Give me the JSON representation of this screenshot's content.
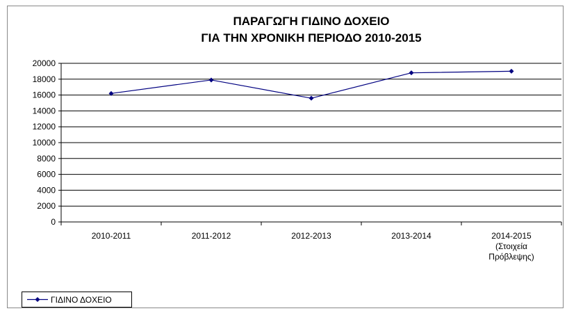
{
  "chart_data": {
    "type": "line",
    "title": [
      "ΠΑΡΑΓΩΓΗ ΓΙΔΙΝΟ ΔΟΧΕΙΟ",
      "ΓΙΑ ΤΗΝ ΧΡΟΝΙΚΗ ΠΕΡΙΟΔΟ 2010-2015"
    ],
    "categories": [
      "2010-2011",
      "2011-2012",
      "2012-2013",
      "2013-2014",
      "2014-2015\n(Στοιχεία\nΠρόβλεψης)"
    ],
    "series": [
      {
        "name": "ΓΙΔΙΝΟ ΔΟΧΕΙΟ",
        "color": "#000080",
        "values": [
          16200,
          17900,
          15600,
          18800,
          19000
        ]
      }
    ],
    "ylim": [
      0,
      20000
    ],
    "yticks": [
      0,
      2000,
      4000,
      6000,
      8000,
      10000,
      12000,
      14000,
      16000,
      18000,
      20000
    ],
    "grid": true,
    "legend": "bottom-left"
  }
}
